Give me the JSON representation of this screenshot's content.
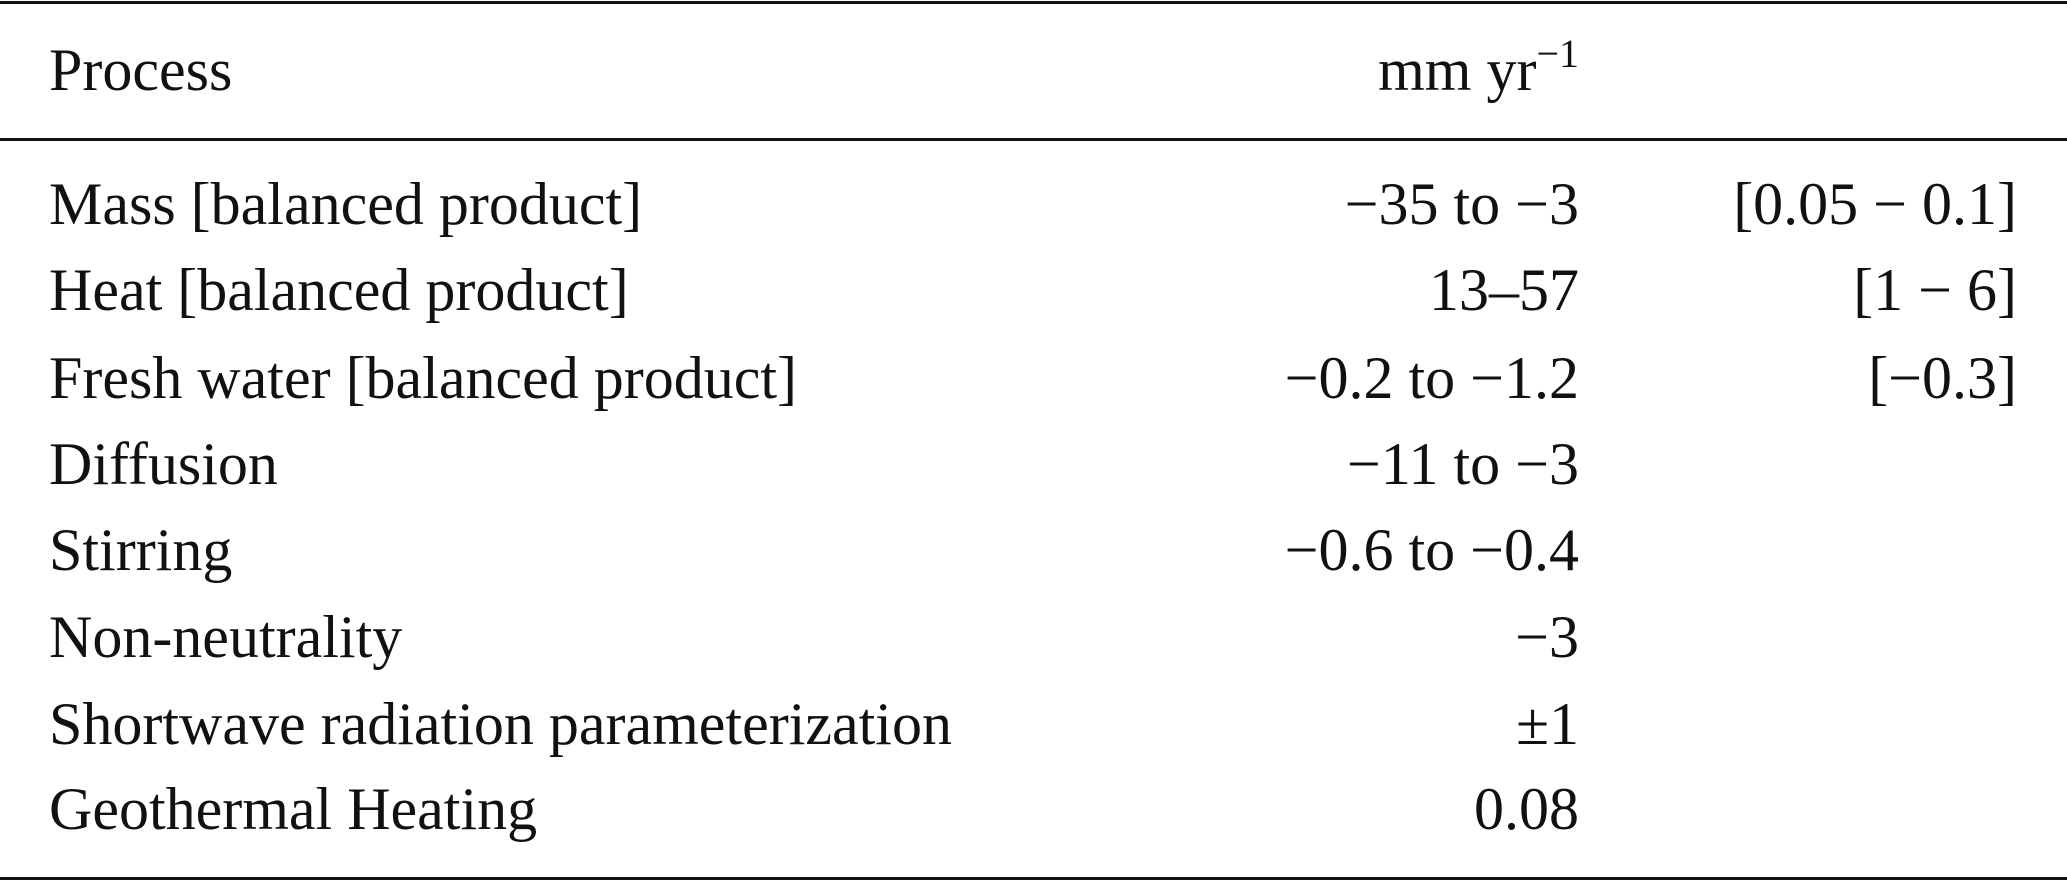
{
  "header": {
    "process": "Process",
    "unit": {
      "base": "mm yr",
      "exponent": "−1"
    }
  },
  "rows": [
    {
      "process": "Mass [balanced product]",
      "range": "−35 to −3",
      "bracket": "[0.05 − 0.1]"
    },
    {
      "process": "Heat [balanced product]",
      "range": "13–57",
      "bracket": "[1 − 6]"
    },
    {
      "process": "Fresh water [balanced product]",
      "range": "−0.2 to −1.2",
      "bracket": "[−0.3]"
    },
    {
      "process": "Diffusion",
      "range": "−11 to −3"
    },
    {
      "process": "Stirring",
      "range": "−0.6 to −0.4"
    },
    {
      "process": "Non-neutrality",
      "range": "−3"
    },
    {
      "process": "Shortwave radiation parameterization",
      "range": "±1"
    },
    {
      "process": "Geothermal Heating",
      "range": "0.08"
    }
  ]
}
